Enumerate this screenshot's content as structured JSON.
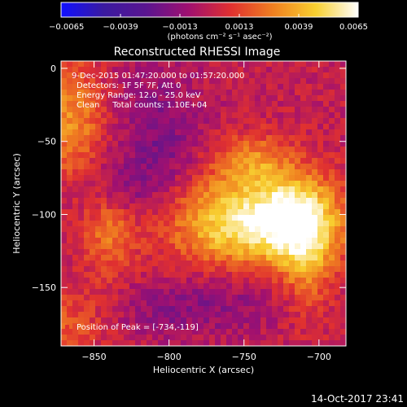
{
  "chart_data": {
    "type": "heatmap",
    "title": "Reconstructed RHESSI Image",
    "xlabel": "Heliocentric X (arcsec)",
    "ylabel": "Heliocentric Y (arcsec)",
    "xlim": [
      -872,
      -682
    ],
    "ylim": [
      -190,
      5
    ],
    "xticks": [
      -850,
      -800,
      -750,
      -700
    ],
    "xtick_labels": [
      "−850",
      "−800",
      "−750",
      "−700"
    ],
    "yticks": [
      0,
      -50,
      -100,
      -150
    ],
    "ytick_labels": [
      "0",
      "−50",
      "−100",
      "−150"
    ],
    "colorbar": {
      "min": -0.0065,
      "max": 0.0065,
      "ticks": [
        -0.0065,
        -0.0039,
        -0.0013,
        0.0013,
        0.0039,
        0.0065
      ],
      "tick_labels": [
        "−0.0065",
        "−0.0039",
        "−0.0013",
        "0.0013",
        "0.0039",
        "0.0065"
      ],
      "unit_label": "(photons cm⁻² s⁻¹ asec⁻²)",
      "colors": [
        "#1010ff",
        "#3a1aa0",
        "#5a1590",
        "#a01070",
        "#e03030",
        "#f08020",
        "#f8d030",
        "#ffffff"
      ]
    },
    "peak": {
      "x": -734,
      "y": -119
    },
    "sources": [
      {
        "x": -745,
        "y": -105,
        "sx": 42,
        "sy": 22,
        "amp": 0.0058
      },
      {
        "x": -720,
        "y": -100,
        "sx": 16,
        "sy": 18,
        "amp": 0.0025
      },
      {
        "x": -708,
        "y": -125,
        "sx": 12,
        "sy": 28,
        "amp": 0.0028
      },
      {
        "x": -745,
        "y": -62,
        "sx": 18,
        "sy": 12,
        "amp": 0.0026
      },
      {
        "x": -865,
        "y": -35,
        "sx": 14,
        "sy": 28,
        "amp": 0.0032
      },
      {
        "x": -840,
        "y": -110,
        "sx": 12,
        "sy": 22,
        "amp": 0.0025
      },
      {
        "x": -870,
        "y": -175,
        "sx": 18,
        "sy": 16,
        "amp": 0.0018
      },
      {
        "x": -805,
        "y": -55,
        "sx": 20,
        "sy": 40,
        "amp": -0.0018
      },
      {
        "x": -835,
        "y": -85,
        "sx": 18,
        "sy": 15,
        "amp": -0.0016
      },
      {
        "x": -760,
        "y": -160,
        "sx": 25,
        "sy": 16,
        "amp": -0.0014
      },
      {
        "x": -805,
        "y": -165,
        "sx": 20,
        "sy": 14,
        "amp": -0.0012
      }
    ]
  },
  "annotations": {
    "time_range": "9-Dec-2015 01:47:20.000 to 01:57:20.000",
    "detectors": "Detectors: 1F 5F 7F, Att 0",
    "energy_range": "Energy Range: 12.0 - 25.0 keV",
    "method": "Clean     Total counts: 1.10E+04",
    "peak_position": "Position of Peak = [-734,-119]"
  },
  "footer": {
    "timestamp": "14-Oct-2017 23:41"
  }
}
